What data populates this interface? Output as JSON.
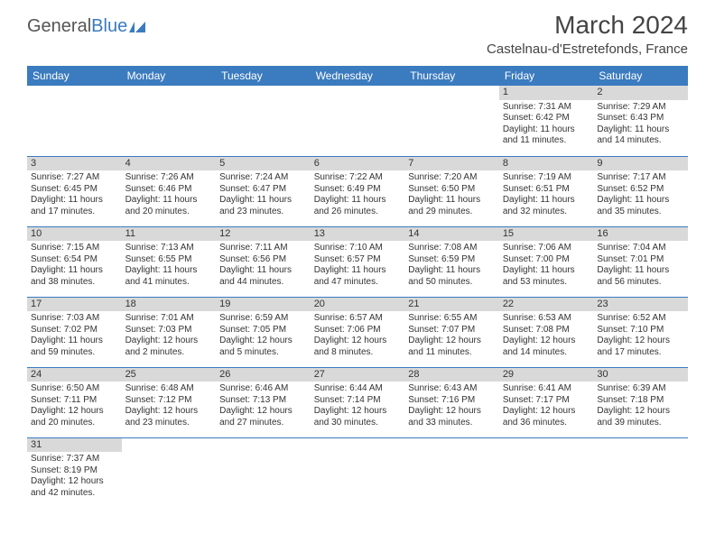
{
  "logo": {
    "part1": "General",
    "part2": "Blue"
  },
  "title": "March 2024",
  "location": "Castelnau-d'Estretefonds, France",
  "colors": {
    "header_bg": "#3b7bbf",
    "daynum_bg": "#d9d9d9",
    "border": "#3b7bbf"
  },
  "weekdays": [
    "Sunday",
    "Monday",
    "Tuesday",
    "Wednesday",
    "Thursday",
    "Friday",
    "Saturday"
  ],
  "weeks": [
    [
      null,
      null,
      null,
      null,
      null,
      {
        "n": "1",
        "sr": "Sunrise: 7:31 AM",
        "ss": "Sunset: 6:42 PM",
        "d1": "Daylight: 11 hours",
        "d2": "and 11 minutes."
      },
      {
        "n": "2",
        "sr": "Sunrise: 7:29 AM",
        "ss": "Sunset: 6:43 PM",
        "d1": "Daylight: 11 hours",
        "d2": "and 14 minutes."
      }
    ],
    [
      {
        "n": "3",
        "sr": "Sunrise: 7:27 AM",
        "ss": "Sunset: 6:45 PM",
        "d1": "Daylight: 11 hours",
        "d2": "and 17 minutes."
      },
      {
        "n": "4",
        "sr": "Sunrise: 7:26 AM",
        "ss": "Sunset: 6:46 PM",
        "d1": "Daylight: 11 hours",
        "d2": "and 20 minutes."
      },
      {
        "n": "5",
        "sr": "Sunrise: 7:24 AM",
        "ss": "Sunset: 6:47 PM",
        "d1": "Daylight: 11 hours",
        "d2": "and 23 minutes."
      },
      {
        "n": "6",
        "sr": "Sunrise: 7:22 AM",
        "ss": "Sunset: 6:49 PM",
        "d1": "Daylight: 11 hours",
        "d2": "and 26 minutes."
      },
      {
        "n": "7",
        "sr": "Sunrise: 7:20 AM",
        "ss": "Sunset: 6:50 PM",
        "d1": "Daylight: 11 hours",
        "d2": "and 29 minutes."
      },
      {
        "n": "8",
        "sr": "Sunrise: 7:19 AM",
        "ss": "Sunset: 6:51 PM",
        "d1": "Daylight: 11 hours",
        "d2": "and 32 minutes."
      },
      {
        "n": "9",
        "sr": "Sunrise: 7:17 AM",
        "ss": "Sunset: 6:52 PM",
        "d1": "Daylight: 11 hours",
        "d2": "and 35 minutes."
      }
    ],
    [
      {
        "n": "10",
        "sr": "Sunrise: 7:15 AM",
        "ss": "Sunset: 6:54 PM",
        "d1": "Daylight: 11 hours",
        "d2": "and 38 minutes."
      },
      {
        "n": "11",
        "sr": "Sunrise: 7:13 AM",
        "ss": "Sunset: 6:55 PM",
        "d1": "Daylight: 11 hours",
        "d2": "and 41 minutes."
      },
      {
        "n": "12",
        "sr": "Sunrise: 7:11 AM",
        "ss": "Sunset: 6:56 PM",
        "d1": "Daylight: 11 hours",
        "d2": "and 44 minutes."
      },
      {
        "n": "13",
        "sr": "Sunrise: 7:10 AM",
        "ss": "Sunset: 6:57 PM",
        "d1": "Daylight: 11 hours",
        "d2": "and 47 minutes."
      },
      {
        "n": "14",
        "sr": "Sunrise: 7:08 AM",
        "ss": "Sunset: 6:59 PM",
        "d1": "Daylight: 11 hours",
        "d2": "and 50 minutes."
      },
      {
        "n": "15",
        "sr": "Sunrise: 7:06 AM",
        "ss": "Sunset: 7:00 PM",
        "d1": "Daylight: 11 hours",
        "d2": "and 53 minutes."
      },
      {
        "n": "16",
        "sr": "Sunrise: 7:04 AM",
        "ss": "Sunset: 7:01 PM",
        "d1": "Daylight: 11 hours",
        "d2": "and 56 minutes."
      }
    ],
    [
      {
        "n": "17",
        "sr": "Sunrise: 7:03 AM",
        "ss": "Sunset: 7:02 PM",
        "d1": "Daylight: 11 hours",
        "d2": "and 59 minutes."
      },
      {
        "n": "18",
        "sr": "Sunrise: 7:01 AM",
        "ss": "Sunset: 7:03 PM",
        "d1": "Daylight: 12 hours",
        "d2": "and 2 minutes."
      },
      {
        "n": "19",
        "sr": "Sunrise: 6:59 AM",
        "ss": "Sunset: 7:05 PM",
        "d1": "Daylight: 12 hours",
        "d2": "and 5 minutes."
      },
      {
        "n": "20",
        "sr": "Sunrise: 6:57 AM",
        "ss": "Sunset: 7:06 PM",
        "d1": "Daylight: 12 hours",
        "d2": "and 8 minutes."
      },
      {
        "n": "21",
        "sr": "Sunrise: 6:55 AM",
        "ss": "Sunset: 7:07 PM",
        "d1": "Daylight: 12 hours",
        "d2": "and 11 minutes."
      },
      {
        "n": "22",
        "sr": "Sunrise: 6:53 AM",
        "ss": "Sunset: 7:08 PM",
        "d1": "Daylight: 12 hours",
        "d2": "and 14 minutes."
      },
      {
        "n": "23",
        "sr": "Sunrise: 6:52 AM",
        "ss": "Sunset: 7:10 PM",
        "d1": "Daylight: 12 hours",
        "d2": "and 17 minutes."
      }
    ],
    [
      {
        "n": "24",
        "sr": "Sunrise: 6:50 AM",
        "ss": "Sunset: 7:11 PM",
        "d1": "Daylight: 12 hours",
        "d2": "and 20 minutes."
      },
      {
        "n": "25",
        "sr": "Sunrise: 6:48 AM",
        "ss": "Sunset: 7:12 PM",
        "d1": "Daylight: 12 hours",
        "d2": "and 23 minutes."
      },
      {
        "n": "26",
        "sr": "Sunrise: 6:46 AM",
        "ss": "Sunset: 7:13 PM",
        "d1": "Daylight: 12 hours",
        "d2": "and 27 minutes."
      },
      {
        "n": "27",
        "sr": "Sunrise: 6:44 AM",
        "ss": "Sunset: 7:14 PM",
        "d1": "Daylight: 12 hours",
        "d2": "and 30 minutes."
      },
      {
        "n": "28",
        "sr": "Sunrise: 6:43 AM",
        "ss": "Sunset: 7:16 PM",
        "d1": "Daylight: 12 hours",
        "d2": "and 33 minutes."
      },
      {
        "n": "29",
        "sr": "Sunrise: 6:41 AM",
        "ss": "Sunset: 7:17 PM",
        "d1": "Daylight: 12 hours",
        "d2": "and 36 minutes."
      },
      {
        "n": "30",
        "sr": "Sunrise: 6:39 AM",
        "ss": "Sunset: 7:18 PM",
        "d1": "Daylight: 12 hours",
        "d2": "and 39 minutes."
      }
    ],
    [
      {
        "n": "31",
        "sr": "Sunrise: 7:37 AM",
        "ss": "Sunset: 8:19 PM",
        "d1": "Daylight: 12 hours",
        "d2": "and 42 minutes."
      },
      null,
      null,
      null,
      null,
      null,
      null
    ]
  ]
}
